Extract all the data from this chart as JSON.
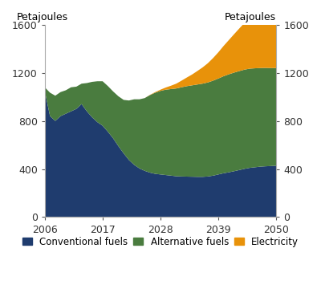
{
  "years": [
    2006,
    2007,
    2008,
    2009,
    2010,
    2011,
    2012,
    2013,
    2014,
    2015,
    2016,
    2017,
    2018,
    2019,
    2020,
    2021,
    2022,
    2023,
    2024,
    2025,
    2026,
    2027,
    2028,
    2029,
    2030,
    2031,
    2032,
    2033,
    2034,
    2035,
    2036,
    2037,
    2038,
    2039,
    2040,
    2041,
    2042,
    2043,
    2044,
    2045,
    2046,
    2047,
    2048,
    2049,
    2050
  ],
  "conventional_fuels": [
    1050,
    840,
    800,
    840,
    860,
    880,
    900,
    940,
    880,
    830,
    790,
    760,
    710,
    655,
    590,
    530,
    475,
    435,
    405,
    385,
    370,
    360,
    355,
    350,
    345,
    340,
    338,
    337,
    336,
    335,
    335,
    338,
    345,
    355,
    365,
    373,
    382,
    392,
    402,
    410,
    415,
    420,
    423,
    425,
    428
  ],
  "alternative_fuels": [
    30,
    195,
    210,
    200,
    195,
    200,
    185,
    170,
    235,
    295,
    340,
    370,
    380,
    390,
    415,
    445,
    495,
    545,
    575,
    605,
    645,
    675,
    695,
    710,
    720,
    730,
    742,
    752,
    760,
    768,
    775,
    782,
    790,
    798,
    807,
    815,
    820,
    823,
    825,
    825,
    823,
    820,
    818,
    815,
    812
  ],
  "electricity": [
    0,
    0,
    0,
    0,
    0,
    0,
    0,
    0,
    0,
    0,
    0,
    0,
    0,
    0,
    0,
    0,
    0,
    0,
    0,
    0,
    2,
    5,
    10,
    18,
    28,
    40,
    55,
    72,
    90,
    112,
    135,
    160,
    188,
    218,
    252,
    285,
    320,
    355,
    390,
    420,
    450,
    477,
    503,
    525,
    550
  ],
  "conventional_color": "#1f3c6e",
  "alternative_color": "#4a7c3f",
  "electricity_color": "#e8920a",
  "ylim": [
    0,
    1600
  ],
  "yticks": [
    0,
    400,
    800,
    1200,
    1600
  ],
  "xticks": [
    2006,
    2017,
    2028,
    2039,
    2050
  ],
  "ylabel_left": "Petajoules",
  "ylabel_right": "Petajoules",
  "legend_labels": [
    "Conventional fuels",
    "Alternative fuels",
    "Electricity"
  ],
  "background_color": "#ffffff",
  "tick_color": "#555555",
  "label_fontsize": 9,
  "legend_fontsize": 8.5
}
